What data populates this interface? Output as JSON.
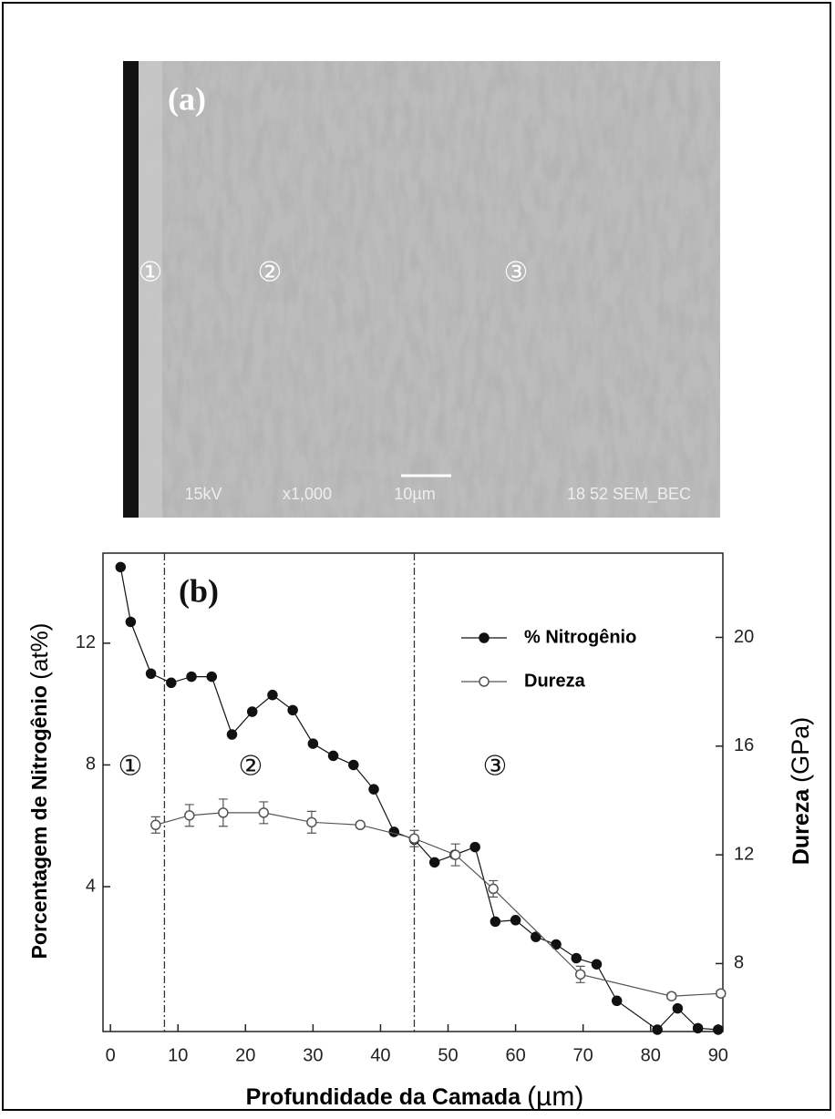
{
  "figure_a": {
    "label": "(a)",
    "zones": [
      "①",
      "②",
      "③"
    ],
    "info": [
      "15kV",
      "x1,000",
      "10µm",
      "18 52 SEM_BEC"
    ]
  },
  "chart_data": {
    "type": "line",
    "label": "(b)",
    "xlabel": "Profundidade da Camada",
    "xlabel_unit": "(µm)",
    "ylabel": "Porcentagem de Nitrogênio",
    "ylabel_unit": "(at%)",
    "y2label": "Dureza",
    "y2label_unit": "(GPa)",
    "xlim": [
      -1.1,
      90.7
    ],
    "xticks": [
      0,
      10,
      20,
      30,
      40,
      50,
      60,
      70,
      80,
      90
    ],
    "ylim": [
      -0.76,
      14.96
    ],
    "yticks": [
      4,
      8,
      12
    ],
    "y2lim": [
      5.5,
      23.1
    ],
    "y2ticks": [
      8,
      12,
      16,
      20
    ],
    "vlines": [
      8,
      45
    ],
    "zones": [
      "①",
      "②",
      "③"
    ],
    "legend": "upper right",
    "series": [
      {
        "name": "% Nitrogênio",
        "color": "#111111",
        "marker": "filled",
        "x": [
          1.5,
          3,
          6,
          9,
          12,
          15,
          18,
          21,
          24,
          27,
          30,
          33,
          36,
          39,
          42,
          45,
          48,
          51,
          54,
          57,
          60,
          63,
          66,
          69,
          72,
          75,
          81,
          84,
          87,
          90
        ],
        "values": [
          14.5,
          12.7,
          11.0,
          10.7,
          10.9,
          10.9,
          9.0,
          9.75,
          10.3,
          9.8,
          8.7,
          8.3,
          8.0,
          7.2,
          5.8,
          5.55,
          4.8,
          5.05,
          5.3,
          2.85,
          2.9,
          2.35,
          2.1,
          1.65,
          1.45,
          0.25,
          -0.7,
          0.0,
          -0.65,
          -0.7
        ]
      },
      {
        "name": "Dureza",
        "color": "#555555",
        "marker": "open",
        "axis": "y2",
        "x": [
          6.7,
          11.7,
          16.7,
          22.7,
          29.8,
          37,
          45,
          51.1,
          56.7,
          69.6,
          83.1,
          90.4
        ],
        "values": [
          13.1,
          13.45,
          13.55,
          13.55,
          13.2,
          13.1,
          12.6,
          12.0,
          10.75,
          7.6,
          6.8,
          6.9
        ],
        "errors": [
          0.3,
          0.4,
          0.5,
          0.4,
          0.4,
          0.1,
          0.3,
          0.4,
          0.3,
          0.3,
          0.1,
          0.1
        ]
      }
    ]
  }
}
